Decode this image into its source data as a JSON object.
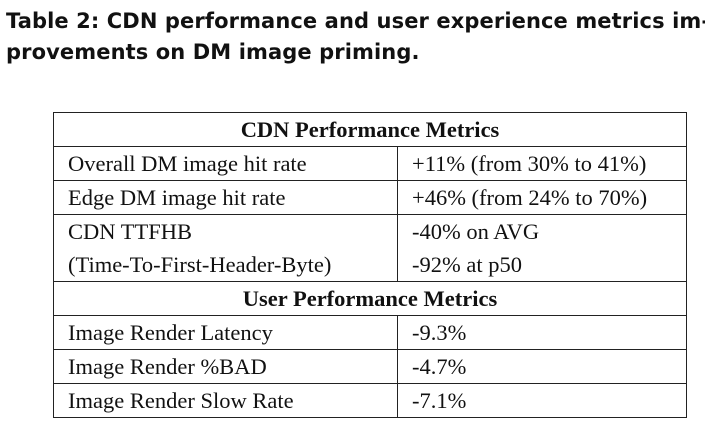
{
  "caption": {
    "line1": "Table 2: CDN performance and user experience metrics im-",
    "line2": "provements on DM image priming."
  },
  "table": {
    "section1_header": "CDN Performance Metrics",
    "section1_rows": [
      {
        "metric": "Overall DM image hit rate",
        "value": "+11% (from 30% to 41%)"
      },
      {
        "metric": "Edge DM image hit rate",
        "value": "+46% (from 24% to 70%)"
      },
      {
        "metric": "CDN TTFHB",
        "value": "-40% on AVG"
      },
      {
        "metric": "(Time-To-First-Header-Byte)",
        "value": "-92% at p50"
      }
    ],
    "section2_header": "User Performance Metrics",
    "section2_rows": [
      {
        "metric": "Image Render Latency",
        "value": "-9.3%"
      },
      {
        "metric": "Image Render %BAD",
        "value": "-4.7%"
      },
      {
        "metric": "Image Render Slow Rate",
        "value": "-7.1%"
      }
    ]
  }
}
